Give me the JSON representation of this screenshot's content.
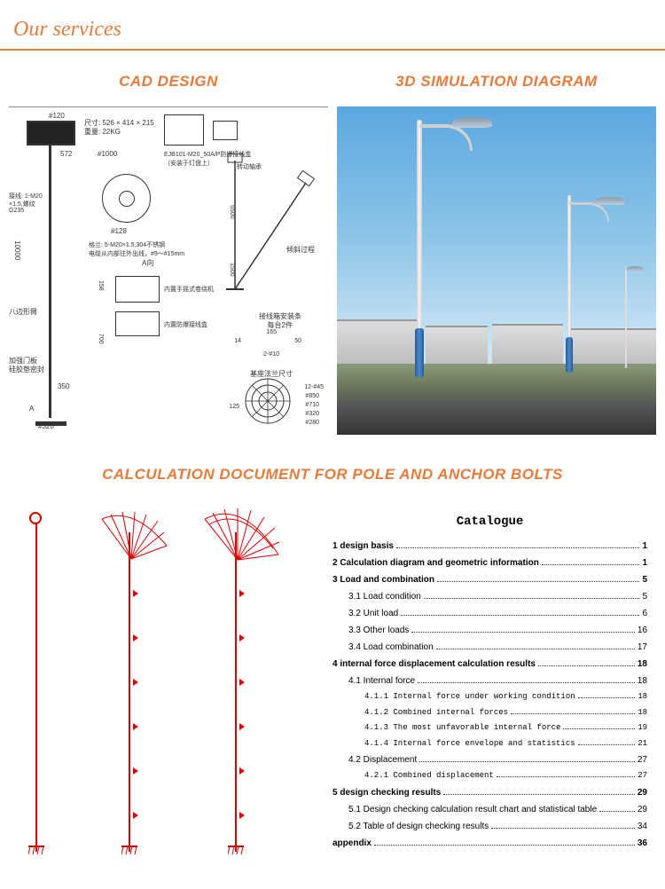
{
  "header": {
    "title": "Our services"
  },
  "sections": {
    "cad": "CAD DESIGN",
    "sim": "3D SIMULATION DIAGRAM",
    "calc": "CALCULATION DOCUMENT FOR POLE AND ANCHOR BOLTS"
  },
  "cad_labels": {
    "top1": "尺寸: 526 × 414 × 215",
    "top2": "重量: 22KG",
    "ej": "EJB101-M20_50A/P防爆接线盒（安装于灯盘上）",
    "d120": "#120",
    "n572": "572",
    "n1000": "#1000",
    "gl": "格兰: 5-M20×1.5,304不锈钢",
    "cable": "电缆从内部往外出线，#9～#15mm",
    "left1": "接线: 1-M20",
    "left2": "×1.5,螺纹",
    "left3": "G235",
    "pole_h": "10000",
    "arm": "八边形臂",
    "door": "加强门板",
    "seal": "硅胶垫密封",
    "a": "A",
    "d320": "#320",
    "n350": "350",
    "n700": "700",
    "n158": "158",
    "d128": "#128",
    "av": "A向",
    "inner1": "内置手摇式卷绕机",
    "inner2": "内置防爆接线盒",
    "tilt": "倾斜过程",
    "rot": "转动轴承",
    "n5500": "5500",
    "n1500": "1500",
    "jx": "接线箱安装条",
    "jx2": "每台2件",
    "n165": "165",
    "n14": "14",
    "n50": "50",
    "h10": "2-#10",
    "flange": "基座法兰尺寸",
    "f1": "12-#45",
    "f2": "#850",
    "f3": "#710",
    "f4": "#320",
    "f5": "#280",
    "n125": "125"
  },
  "catalogue": {
    "title": "Catalogue",
    "items": [
      {
        "text": "1 design basis",
        "page": "1",
        "bold": true,
        "level": 0
      },
      {
        "text": "2 Calculation diagram and geometric information",
        "page": "1",
        "bold": true,
        "level": 0
      },
      {
        "text": "3 Load and combination",
        "page": "5",
        "bold": true,
        "level": 0
      },
      {
        "text": "3.1 Load condition",
        "page": "5",
        "bold": false,
        "level": 1
      },
      {
        "text": "3.2 Unit load",
        "page": "6",
        "bold": false,
        "level": 1
      },
      {
        "text": "3.3 Other loads",
        "page": "16",
        "bold": false,
        "level": 1
      },
      {
        "text": "3.4 Load combination",
        "page": "17",
        "bold": false,
        "level": 1
      },
      {
        "text": "4 internal force displacement calculation results",
        "page": "18",
        "bold": true,
        "level": 0
      },
      {
        "text": "4.1 Internal force",
        "page": "18",
        "bold": false,
        "level": 1
      },
      {
        "text": "4.1.1 Internal force under working condition",
        "page": "18",
        "bold": false,
        "level": 2
      },
      {
        "text": "4.1.2 Combined internal forces",
        "page": "18",
        "bold": false,
        "level": 2
      },
      {
        "text": "4.1.3 The most unfavorable internal force",
        "page": "19",
        "bold": false,
        "level": 2
      },
      {
        "text": "4.1.4 Internal force envelope and statistics",
        "page": "21",
        "bold": false,
        "level": 2
      },
      {
        "text": "4.2 Displacement",
        "page": "27",
        "bold": false,
        "level": 1
      },
      {
        "text": "4.2.1 Combined displacement",
        "page": "27",
        "bold": false,
        "level": 2
      },
      {
        "text": "5 design checking results",
        "page": "29",
        "bold": true,
        "level": 0
      },
      {
        "text": "5.1 Design checking calculation result chart and statistical table",
        "page": "29",
        "bold": false,
        "level": 1
      },
      {
        "text": "5.2 Table of design checking results",
        "page": "34",
        "bold": false,
        "level": 1
      },
      {
        "text": "appendix",
        "page": "36",
        "bold": true,
        "level": 0
      }
    ]
  },
  "colors": {
    "accent": "#e87a3a",
    "red": "#d00",
    "sky_top": "#5ba8e0",
    "pole_blue": "#2a5a9a"
  }
}
